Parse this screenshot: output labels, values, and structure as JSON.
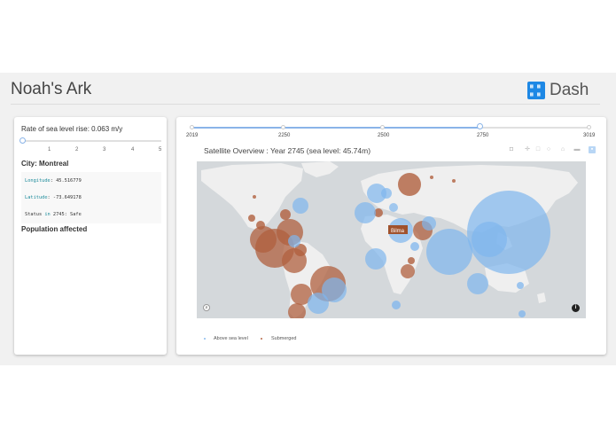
{
  "app": {
    "title": "Noah's Ark",
    "logo_text": "Dash"
  },
  "controls": {
    "rate_label": "Rate of sea level rise: 0.063 m/y",
    "rate_value": 0.063,
    "rate_ticks": [
      "1",
      "2",
      "3",
      "4",
      "5"
    ]
  },
  "city": {
    "heading": "City: Montreal",
    "longitude_key": "Longitude",
    "longitude_value": ": 45.516779",
    "latitude_key": "Latitude",
    "latitude_value": ": -73.649178",
    "status_prefix": "Status ",
    "status_key": "in",
    "status_suffix": " 2745: Safe",
    "population_heading": "Population affected"
  },
  "year_slider": {
    "marks": [
      "2019",
      "2250",
      "2500",
      "2750",
      "3019"
    ],
    "value": 2745
  },
  "chart": {
    "title": "Satellite Overview : Year 2745 (sea level: 45.74m)",
    "hover_label": "Bilma",
    "legend": [
      {
        "name": "Above sea level",
        "color": "#88bbee"
      },
      {
        "name": "Submerged",
        "color": "#b86a4a"
      }
    ],
    "modebar_icons": [
      "camera-icon",
      "pan-icon",
      "box-select-icon",
      "lasso-icon",
      "home-icon",
      "reset-icon",
      "plotly-logo-icon"
    ]
  },
  "colors": {
    "safe": "#7fb6ee",
    "submerged": "#b0603f",
    "land": "#ebebeb",
    "ocean": "#d4d8db",
    "accent": "#1e88e5"
  }
}
